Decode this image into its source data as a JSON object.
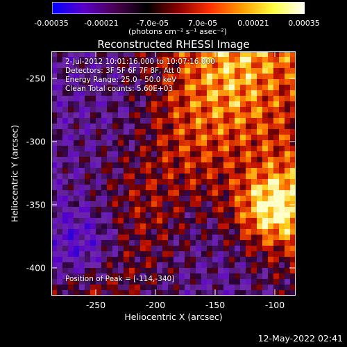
{
  "colorbar": {
    "ticks": [
      "-0.00035",
      "-0.00021",
      "-7.0e-05",
      "7.0e-05",
      "0.00021",
      "0.00035"
    ],
    "units": "(photons cm⁻² s⁻¹ asec⁻²)",
    "colors": [
      "#0000ff",
      "#5a00c8",
      "#4a0050",
      "#000000",
      "#8a0000",
      "#ff3000",
      "#ff9a00",
      "#ffff40",
      "#ffffff"
    ]
  },
  "title": "Reconstructed RHESSI Image",
  "info": {
    "time_range": "2-Jul-2012 10:01:16.000 to 10:07:16.000",
    "detectors": "Detectors: 3F 5F 6F 7F 8F, Att 0",
    "energy_range": "Energy Range: 25.0 - 50.0 keV",
    "clean_counts": "Clean     Total counts: 5.60E+03",
    "peak": "Position of Peak = [-114,-340]"
  },
  "axes": {
    "xlabel": "Heliocentric X (arcsec)",
    "ylabel": "Heliocentric Y (arcsec)",
    "x_ticks": [
      "-250",
      "-200",
      "-150",
      "-100"
    ],
    "y_ticks": [
      "-250",
      "-300",
      "-350",
      "-400"
    ],
    "x_range": [
      -284,
      -80
    ],
    "y_range": [
      -420,
      -227
    ]
  },
  "timestamp": "12-May-2022 02:41"
}
